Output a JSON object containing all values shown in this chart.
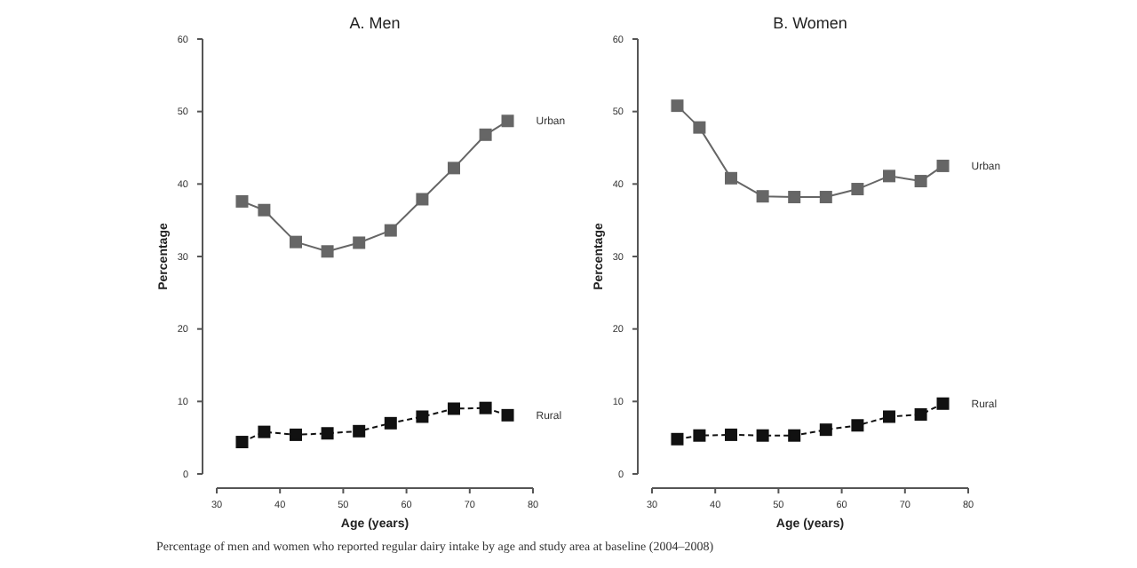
{
  "chart_data": [
    {
      "type": "line",
      "title": "A. Men",
      "xlabel": "Age (years)",
      "ylabel": "Percentage",
      "xlim": [
        30,
        80
      ],
      "xticks": [
        30,
        40,
        50,
        60,
        70,
        80
      ],
      "ylim": [
        0,
        60
      ],
      "yticks": [
        0,
        10,
        20,
        30,
        40,
        50,
        60
      ],
      "x": [
        34,
        37.5,
        42.5,
        47.5,
        52.5,
        57.5,
        62.5,
        67.5,
        72.5,
        76
      ],
      "series": [
        {
          "name": "Urban",
          "color": "#666666",
          "marker": "square",
          "line_style": "solid",
          "values": [
            37.6,
            36.4,
            32.0,
            30.7,
            31.9,
            33.6,
            37.9,
            42.2,
            46.8,
            48.7
          ]
        },
        {
          "name": "Rural",
          "color": "#111111",
          "marker": "square",
          "line_style": "dashed",
          "values": [
            4.4,
            5.8,
            5.4,
            5.6,
            5.9,
            7.0,
            7.9,
            9.0,
            9.1,
            8.1
          ]
        }
      ],
      "annotations": [
        "Percentage of men and women who reported regular dairy intake by age and study area at baseline (2004–2008)"
      ]
    },
    {
      "type": "line",
      "title": "B. Women",
      "xlabel": "Age (years)",
      "ylabel": "Percentage",
      "xlim": [
        30,
        80
      ],
      "xticks": [
        30,
        40,
        50,
        60,
        70,
        80
      ],
      "ylim": [
        0,
        60
      ],
      "yticks": [
        0,
        10,
        20,
        30,
        40,
        50,
        60
      ],
      "x": [
        34,
        37.5,
        42.5,
        47.5,
        52.5,
        57.5,
        62.5,
        67.5,
        72.5,
        76
      ],
      "series": [
        {
          "name": "Urban",
          "color": "#666666",
          "marker": "square",
          "line_style": "solid",
          "values": [
            50.8,
            47.8,
            40.8,
            38.3,
            38.2,
            38.2,
            39.3,
            41.1,
            40.4,
            42.5
          ]
        },
        {
          "name": "Rural",
          "color": "#111111",
          "marker": "square",
          "line_style": "dashed",
          "values": [
            4.8,
            5.3,
            5.4,
            5.3,
            5.3,
            6.1,
            6.7,
            7.9,
            8.2,
            9.7
          ]
        }
      ]
    }
  ]
}
